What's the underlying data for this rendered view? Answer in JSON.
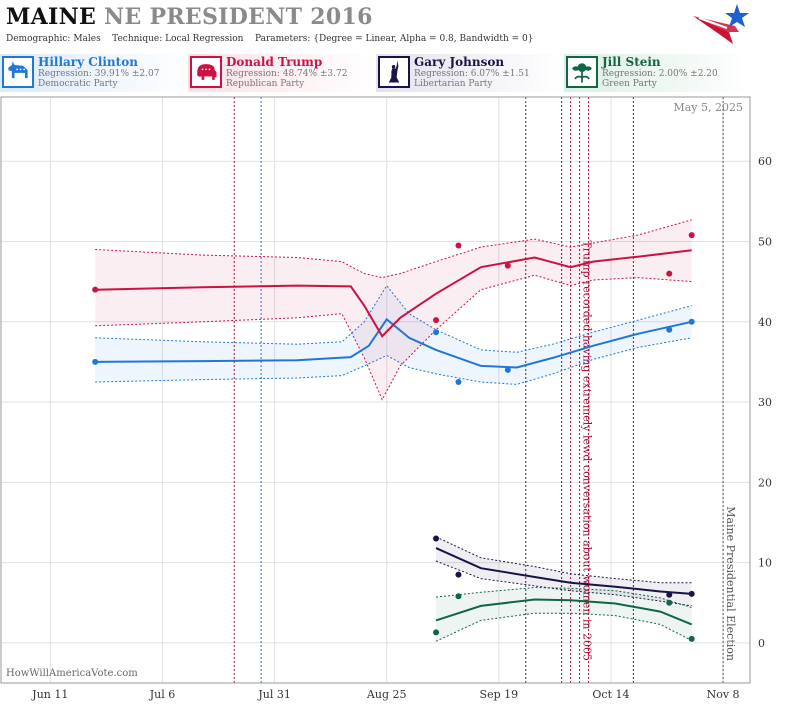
{
  "header": {
    "state": "MAINE",
    "rest": " NE PRESIDENT 2016",
    "demographic_label": "Demographic:",
    "demographic": "Males",
    "technique_label": "Technique:",
    "technique": "Local Regression",
    "parameters_label": "Parameters:",
    "parameters": "{Degree = Linear, Alpha = 0.8, Bandwidth = 0}"
  },
  "candidates": [
    {
      "name": "Hillary Clinton",
      "regression": "Regression: 39.91% ±2.07",
      "party": "Democratic Party",
      "color": "#1f77d6",
      "icon": "donkey-icon"
    },
    {
      "name": "Donald Trump",
      "regression": "Regression: 48.74% ±3.72",
      "party": "Republican Party",
      "color": "#cc1144",
      "icon": "elephant-icon"
    },
    {
      "name": "Gary Johnson",
      "regression": "Regression: 6.07% ±1.51",
      "party": "Libertarian Party",
      "color": "#1a1446",
      "icon": "liberty-statue-icon"
    },
    {
      "name": "Jill Stein",
      "regression": "Regression: 2.00% ±2.20",
      "party": "Green Party",
      "color": "#116644",
      "icon": "flower-icon"
    }
  ],
  "footer": "HowWillAmericaVote.com",
  "chart_data": {
    "type": "line",
    "date_label": "May 5, 2025",
    "x_ticks": [
      "Jun 11",
      "Jul 6",
      "Jul 31",
      "Aug 25",
      "Sep 19",
      "Oct 14",
      "Nov 8"
    ],
    "x_tick_dates": [
      "2016-06-11",
      "2016-07-06",
      "2016-07-31",
      "2016-08-25",
      "2016-09-19",
      "2016-10-14",
      "2016-11-08"
    ],
    "xlim": [
      "2016-05-31",
      "2016-11-14"
    ],
    "ylim": [
      -5,
      68
    ],
    "y_ticks": [
      0,
      10,
      20,
      30,
      40,
      50,
      60
    ],
    "grid": true,
    "annotations": [
      {
        "text": "Trump recorded having extremely lewd conversation about women in 2005",
        "date": "2016-10-07",
        "color": "#aa1133"
      },
      {
        "text": "Maine Presidential Election",
        "date": "2016-11-08",
        "color": "#555555"
      }
    ],
    "event_lines": [
      {
        "date": "2016-07-22",
        "color": "#aa1133"
      },
      {
        "date": "2016-07-28",
        "color": "#1f77d6"
      },
      {
        "date": "2016-09-25",
        "color": "#333333"
      },
      {
        "date": "2016-10-03",
        "color": "#333333"
      },
      {
        "date": "2016-10-05",
        "color": "#aa1133"
      },
      {
        "date": "2016-10-09",
        "color": "#aa1133"
      },
      {
        "date": "2016-10-19",
        "color": "#333333"
      }
    ],
    "series": [
      {
        "name": "Hillary Clinton",
        "color": "#1f77d6",
        "line": [
          [
            "2016-06-21",
            35
          ],
          [
            "2016-07-15",
            35.1
          ],
          [
            "2016-08-05",
            35.2
          ],
          [
            "2016-08-17",
            35.6
          ],
          [
            "2016-08-21",
            37
          ],
          [
            "2016-08-25",
            40.3
          ],
          [
            "2016-08-30",
            38
          ],
          [
            "2016-09-05",
            36.5
          ],
          [
            "2016-09-15",
            34.5
          ],
          [
            "2016-09-23",
            34.3
          ],
          [
            "2016-10-01",
            35.5
          ],
          [
            "2016-10-10",
            37
          ],
          [
            "2016-10-20",
            38.5
          ],
          [
            "2016-11-01",
            40
          ]
        ],
        "upper": [
          [
            "2016-06-21",
            38
          ],
          [
            "2016-07-15",
            37.5
          ],
          [
            "2016-08-05",
            37.2
          ],
          [
            "2016-08-15",
            37.5
          ],
          [
            "2016-08-20",
            40
          ],
          [
            "2016-08-25",
            44.5
          ],
          [
            "2016-08-30",
            41
          ],
          [
            "2016-09-05",
            39
          ],
          [
            "2016-09-15",
            36.5
          ],
          [
            "2016-09-23",
            36.2
          ],
          [
            "2016-10-01",
            37.2
          ],
          [
            "2016-10-10",
            38.7
          ],
          [
            "2016-10-20",
            40.2
          ],
          [
            "2016-11-01",
            42
          ]
        ],
        "lower": [
          [
            "2016-06-21",
            32.5
          ],
          [
            "2016-07-15",
            32.8
          ],
          [
            "2016-08-05",
            33
          ],
          [
            "2016-08-15",
            33.3
          ],
          [
            "2016-08-20",
            34.5
          ],
          [
            "2016-08-25",
            35.8
          ],
          [
            "2016-08-30",
            34.3
          ],
          [
            "2016-09-05",
            33.5
          ],
          [
            "2016-09-15",
            32.5
          ],
          [
            "2016-09-23",
            32.2
          ],
          [
            "2016-10-01",
            33.5
          ],
          [
            "2016-10-10",
            35.3
          ],
          [
            "2016-10-20",
            36.8
          ],
          [
            "2016-11-01",
            38
          ]
        ],
        "points": [
          [
            "2016-06-21",
            35
          ],
          [
            "2016-09-05",
            38.7
          ],
          [
            "2016-09-10",
            32.5
          ],
          [
            "2016-09-21",
            34
          ],
          [
            "2016-10-27",
            39
          ],
          [
            "2016-11-01",
            40
          ]
        ]
      },
      {
        "name": "Donald Trump",
        "color": "#cc1144",
        "line": [
          [
            "2016-06-21",
            44
          ],
          [
            "2016-07-15",
            44.3
          ],
          [
            "2016-08-05",
            44.5
          ],
          [
            "2016-08-17",
            44.4
          ],
          [
            "2016-08-20",
            42
          ],
          [
            "2016-08-24",
            38.2
          ],
          [
            "2016-08-28",
            40.5
          ],
          [
            "2016-09-05",
            43.5
          ],
          [
            "2016-09-15",
            46.8
          ],
          [
            "2016-09-27",
            48
          ],
          [
            "2016-10-05",
            46.8
          ],
          [
            "2016-10-10",
            47.5
          ],
          [
            "2016-10-20",
            48.1
          ],
          [
            "2016-11-01",
            48.9
          ]
        ],
        "upper": [
          [
            "2016-06-21",
            49
          ],
          [
            "2016-07-15",
            48.3
          ],
          [
            "2016-08-05",
            48
          ],
          [
            "2016-08-15",
            47.5
          ],
          [
            "2016-08-20",
            46
          ],
          [
            "2016-08-24",
            45.5
          ],
          [
            "2016-08-28",
            46
          ],
          [
            "2016-09-05",
            47.5
          ],
          [
            "2016-09-15",
            49.3
          ],
          [
            "2016-09-27",
            50.3
          ],
          [
            "2016-10-05",
            49.3
          ],
          [
            "2016-10-10",
            49.8
          ],
          [
            "2016-10-20",
            50.8
          ],
          [
            "2016-11-01",
            52.7
          ]
        ],
        "lower": [
          [
            "2016-06-21",
            39.5
          ],
          [
            "2016-07-15",
            40
          ],
          [
            "2016-08-05",
            40.5
          ],
          [
            "2016-08-15",
            41
          ],
          [
            "2016-08-20",
            35.5
          ],
          [
            "2016-08-24",
            30.3
          ],
          [
            "2016-08-28",
            34.5
          ],
          [
            "2016-09-05",
            39
          ],
          [
            "2016-09-15",
            44
          ],
          [
            "2016-09-27",
            45.8
          ],
          [
            "2016-10-05",
            44.5
          ],
          [
            "2016-10-10",
            45.2
          ],
          [
            "2016-10-20",
            45.5
          ],
          [
            "2016-11-01",
            45
          ]
        ],
        "points": [
          [
            "2016-06-21",
            44
          ],
          [
            "2016-09-05",
            40.2
          ],
          [
            "2016-09-10",
            49.5
          ],
          [
            "2016-09-21",
            47
          ],
          [
            "2016-10-27",
            46
          ],
          [
            "2016-11-01",
            50.8
          ]
        ]
      },
      {
        "name": "Gary Johnson",
        "color": "#1a1446",
        "line": [
          [
            "2016-09-05",
            11.8
          ],
          [
            "2016-09-15",
            9.3
          ],
          [
            "2016-09-27",
            8.2
          ],
          [
            "2016-10-05",
            7.5
          ],
          [
            "2016-10-15",
            7
          ],
          [
            "2016-10-25",
            6.4
          ],
          [
            "2016-11-01",
            6.1
          ]
        ],
        "upper": [
          [
            "2016-09-05",
            13.2
          ],
          [
            "2016-09-15",
            10.6
          ],
          [
            "2016-09-27",
            9.5
          ],
          [
            "2016-10-05",
            8.6
          ],
          [
            "2016-10-15",
            8
          ],
          [
            "2016-10-25",
            7.5
          ],
          [
            "2016-11-01",
            7.5
          ]
        ],
        "lower": [
          [
            "2016-09-05",
            10.2
          ],
          [
            "2016-09-15",
            8
          ],
          [
            "2016-09-27",
            7.1
          ],
          [
            "2016-10-05",
            6.5
          ],
          [
            "2016-10-15",
            6
          ],
          [
            "2016-10-25",
            5.2
          ],
          [
            "2016-11-01",
            4.6
          ]
        ],
        "points": [
          [
            "2016-09-05",
            13
          ],
          [
            "2016-09-10",
            8.5
          ],
          [
            "2016-10-27",
            6
          ],
          [
            "2016-11-01",
            6.1
          ]
        ]
      },
      {
        "name": "Jill Stein",
        "color": "#116644",
        "line": [
          [
            "2016-09-05",
            2.8
          ],
          [
            "2016-09-15",
            4.6
          ],
          [
            "2016-09-27",
            5.4
          ],
          [
            "2016-10-05",
            5.3
          ],
          [
            "2016-10-15",
            4.9
          ],
          [
            "2016-10-25",
            3.9
          ],
          [
            "2016-11-01",
            2.3
          ]
        ],
        "upper": [
          [
            "2016-09-05",
            5.7
          ],
          [
            "2016-09-15",
            6.3
          ],
          [
            "2016-09-27",
            6.9
          ],
          [
            "2016-10-05",
            6.8
          ],
          [
            "2016-10-15",
            6.5
          ],
          [
            "2016-10-25",
            5.6
          ],
          [
            "2016-11-01",
            4.4
          ]
        ],
        "lower": [
          [
            "2016-09-05",
            0.2
          ],
          [
            "2016-09-15",
            2.8
          ],
          [
            "2016-09-27",
            3.7
          ],
          [
            "2016-10-05",
            3.7
          ],
          [
            "2016-10-15",
            3.4
          ],
          [
            "2016-10-25",
            2.3
          ],
          [
            "2016-11-01",
            0.3
          ]
        ],
        "points": [
          [
            "2016-09-05",
            1.3
          ],
          [
            "2016-09-10",
            5.8
          ],
          [
            "2016-10-27",
            5
          ],
          [
            "2016-11-01",
            0.5
          ]
        ]
      }
    ]
  }
}
